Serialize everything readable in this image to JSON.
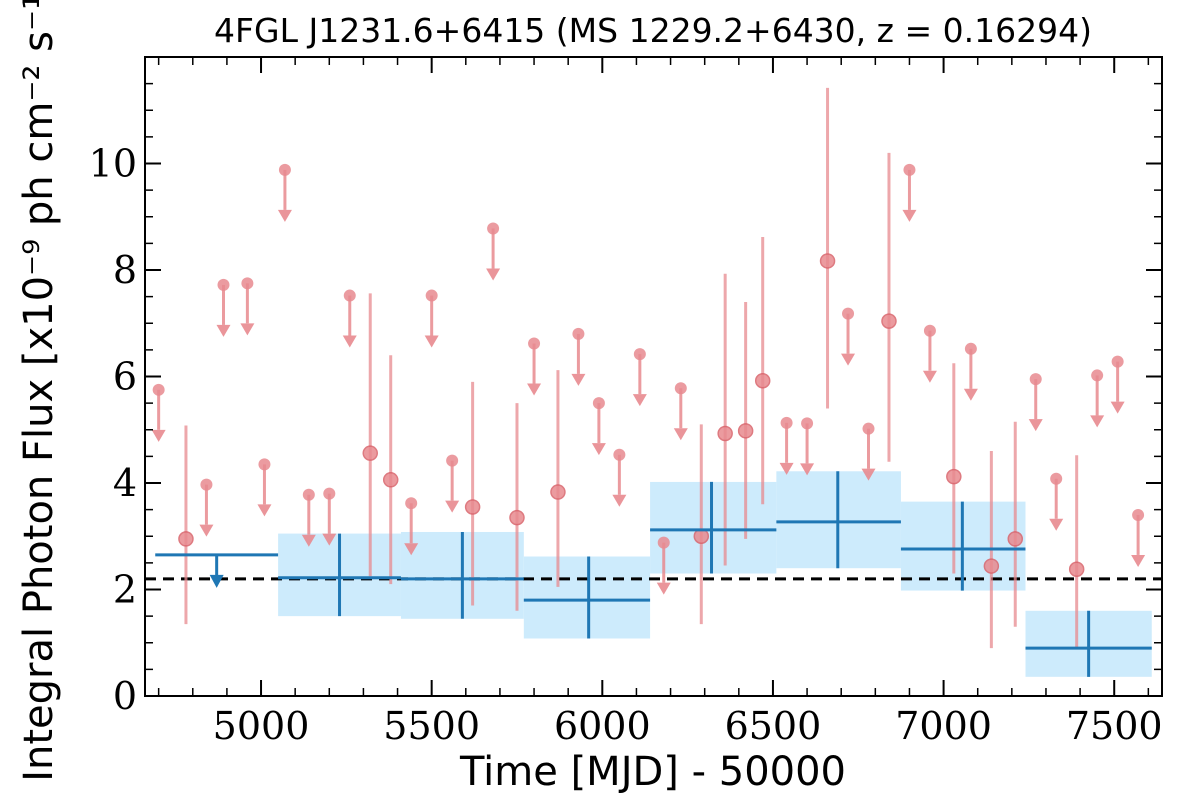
{
  "chart_data": {
    "type": "scatter",
    "title": "4FGL J1231.6+6415 (MS 1229.2+6430, z = 0.16294)",
    "xlabel": "Time [MJD] - 50000",
    "ylabel": "Integral Photon Flux [x10⁻⁹ ph cm⁻² s⁻¹]",
    "xlim": [
      4660,
      7640
    ],
    "ylim": [
      0,
      12
    ],
    "xticks": [
      5000,
      5500,
      6000,
      6500,
      7000,
      7500
    ],
    "yticks": [
      0,
      2,
      4,
      6,
      8,
      10
    ],
    "grid": false,
    "reference_line": {
      "y": 2.2,
      "style": "dashed",
      "color": "#000000"
    },
    "colors": {
      "short_bins": "#e88a8f",
      "long_bins": "#1f77b4",
      "long_band": "#cdebfc"
    },
    "series": [
      {
        "kind": "short_bin_upper_limits",
        "points": [
          {
            "x": 4700,
            "y": 5.75
          },
          {
            "x": 4840,
            "y": 3.97
          },
          {
            "x": 4890,
            "y": 7.72
          },
          {
            "x": 4960,
            "y": 7.75
          },
          {
            "x": 5010,
            "y": 4.35
          },
          {
            "x": 5070,
            "y": 9.88
          },
          {
            "x": 5140,
            "y": 3.78
          },
          {
            "x": 5200,
            "y": 3.8
          },
          {
            "x": 5260,
            "y": 7.52
          },
          {
            "x": 5440,
            "y": 3.62
          },
          {
            "x": 5500,
            "y": 7.52
          },
          {
            "x": 5560,
            "y": 4.42
          },
          {
            "x": 5680,
            "y": 8.78
          },
          {
            "x": 5800,
            "y": 6.62
          },
          {
            "x": 5930,
            "y": 6.8
          },
          {
            "x": 5990,
            "y": 5.5
          },
          {
            "x": 6050,
            "y": 4.53
          },
          {
            "x": 6110,
            "y": 6.42
          },
          {
            "x": 6180,
            "y": 2.88
          },
          {
            "x": 6230,
            "y": 5.78
          },
          {
            "x": 6540,
            "y": 5.13
          },
          {
            "x": 6600,
            "y": 5.12
          },
          {
            "x": 6720,
            "y": 7.18
          },
          {
            "x": 6780,
            "y": 5.02
          },
          {
            "x": 6900,
            "y": 9.88
          },
          {
            "x": 6960,
            "y": 6.86
          },
          {
            "x": 7080,
            "y": 6.52
          },
          {
            "x": 7270,
            "y": 5.95
          },
          {
            "x": 7330,
            "y": 4.08
          },
          {
            "x": 7450,
            "y": 6.02
          },
          {
            "x": 7510,
            "y": 6.28
          },
          {
            "x": 7570,
            "y": 3.4
          }
        ]
      },
      {
        "kind": "short_bin_detections",
        "points": [
          {
            "x": 4780,
            "y": 2.95,
            "ylo": 1.35,
            "yhi": 5.08
          },
          {
            "x": 5320,
            "y": 4.56,
            "ylo": 2.25,
            "yhi": 7.56
          },
          {
            "x": 5380,
            "y": 4.06,
            "ylo": 2.1,
            "yhi": 6.4
          },
          {
            "x": 5620,
            "y": 3.55,
            "ylo": 1.7,
            "yhi": 5.9
          },
          {
            "x": 5750,
            "y": 3.35,
            "ylo": 1.6,
            "yhi": 5.5
          },
          {
            "x": 5870,
            "y": 3.83,
            "ylo": 2.05,
            "yhi": 6.12
          },
          {
            "x": 6290,
            "y": 3.0,
            "ylo": 1.35,
            "yhi": 5.1
          },
          {
            "x": 6360,
            "y": 4.93,
            "ylo": 2.45,
            "yhi": 7.93
          },
          {
            "x": 6420,
            "y": 4.98,
            "ylo": 2.95,
            "yhi": 7.4
          },
          {
            "x": 6470,
            "y": 5.92,
            "ylo": 3.6,
            "yhi": 8.62
          },
          {
            "x": 6660,
            "y": 8.17,
            "ylo": 5.4,
            "yhi": 11.42
          },
          {
            "x": 6840,
            "y": 7.04,
            "ylo": 4.4,
            "yhi": 10.2
          },
          {
            "x": 7030,
            "y": 4.12,
            "ylo": 2.3,
            "yhi": 6.25
          },
          {
            "x": 7140,
            "y": 2.44,
            "ylo": 0.9,
            "yhi": 4.6
          },
          {
            "x": 7210,
            "y": 2.95,
            "ylo": 1.3,
            "yhi": 5.15
          },
          {
            "x": 7390,
            "y": 2.38,
            "ylo": 0.9,
            "yhi": 4.52
          }
        ]
      },
      {
        "kind": "long_bin_upper_limits",
        "points": [
          {
            "x": 4870,
            "xlo": 4690,
            "xhi": 5050,
            "y": 2.65
          }
        ]
      },
      {
        "kind": "long_bin_detections",
        "points": [
          {
            "x": 5230,
            "xlo": 5050,
            "xhi": 5410,
            "y": 2.22,
            "ylo": 1.5,
            "yhi": 3.05
          },
          {
            "x": 5590,
            "xlo": 5410,
            "xhi": 5770,
            "y": 2.2,
            "ylo": 1.45,
            "yhi": 3.08
          },
          {
            "x": 5960,
            "xlo": 5770,
            "xhi": 6140,
            "y": 1.8,
            "ylo": 1.08,
            "yhi": 2.62
          },
          {
            "x": 6320,
            "xlo": 6140,
            "xhi": 6510,
            "y": 3.12,
            "ylo": 2.3,
            "yhi": 4.02
          },
          {
            "x": 6690,
            "xlo": 6510,
            "xhi": 6875,
            "y": 3.27,
            "ylo": 2.4,
            "yhi": 4.22
          },
          {
            "x": 7055,
            "xlo": 6875,
            "xhi": 7240,
            "y": 2.76,
            "ylo": 1.98,
            "yhi": 3.65
          },
          {
            "x": 7425,
            "xlo": 7240,
            "xhi": 7610,
            "y": 0.9,
            "ylo": 0.36,
            "yhi": 1.6
          }
        ]
      }
    ]
  }
}
